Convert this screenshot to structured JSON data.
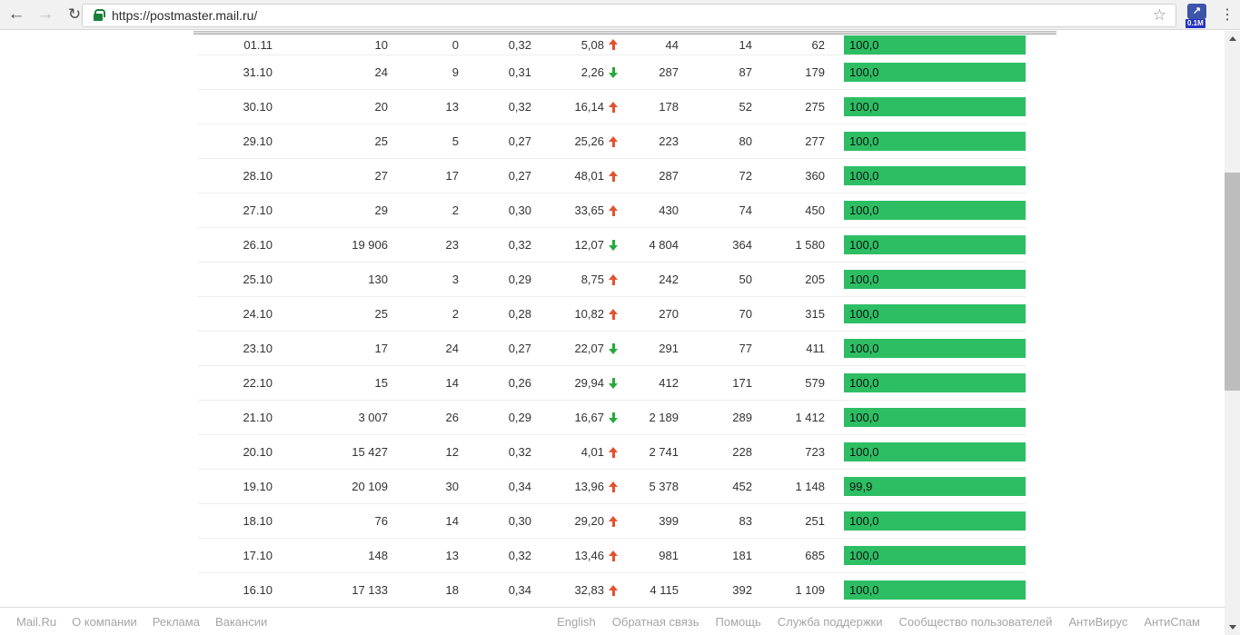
{
  "browser": {
    "url": "https://postmaster.mail.ru/",
    "extension_badge": "0.1M",
    "back_glyph": "←",
    "forward_glyph": "→",
    "refresh_glyph": "↻",
    "star_glyph": "☆",
    "menu_glyph": "⋮",
    "ext_glyph": "↗"
  },
  "colors": {
    "bar_green": "#2dbe64",
    "trend_up_red": "#e2532d",
    "trend_down_green": "#27a93c"
  },
  "table": {
    "rows": [
      {
        "date": "01.11",
        "v1": "10",
        "v2": "0",
        "v3": "0,32",
        "pct": "5,08",
        "trend": "up",
        "v4": "44",
        "v5": "14",
        "v6": "62",
        "bar_label": "100,0",
        "bar_pct": 100
      },
      {
        "date": "31.10",
        "v1": "24",
        "v2": "9",
        "v3": "0,31",
        "pct": "2,26",
        "trend": "down",
        "v4": "287",
        "v5": "87",
        "v6": "179",
        "bar_label": "100,0",
        "bar_pct": 100
      },
      {
        "date": "30.10",
        "v1": "20",
        "v2": "13",
        "v3": "0,32",
        "pct": "16,14",
        "trend": "up",
        "v4": "178",
        "v5": "52",
        "v6": "275",
        "bar_label": "100,0",
        "bar_pct": 100
      },
      {
        "date": "29.10",
        "v1": "25",
        "v2": "5",
        "v3": "0,27",
        "pct": "25,26",
        "trend": "up",
        "v4": "223",
        "v5": "80",
        "v6": "277",
        "bar_label": "100,0",
        "bar_pct": 100
      },
      {
        "date": "28.10",
        "v1": "27",
        "v2": "17",
        "v3": "0,27",
        "pct": "48,01",
        "trend": "up",
        "v4": "287",
        "v5": "72",
        "v6": "360",
        "bar_label": "100,0",
        "bar_pct": 100
      },
      {
        "date": "27.10",
        "v1": "29",
        "v2": "2",
        "v3": "0,30",
        "pct": "33,65",
        "trend": "up",
        "v4": "430",
        "v5": "74",
        "v6": "450",
        "bar_label": "100,0",
        "bar_pct": 100
      },
      {
        "date": "26.10",
        "v1": "19 906",
        "v2": "23",
        "v3": "0,32",
        "pct": "12,07",
        "trend": "down",
        "v4": "4 804",
        "v5": "364",
        "v6": "1 580",
        "bar_label": "100,0",
        "bar_pct": 100
      },
      {
        "date": "25.10",
        "v1": "130",
        "v2": "3",
        "v3": "0,29",
        "pct": "8,75",
        "trend": "up",
        "v4": "242",
        "v5": "50",
        "v6": "205",
        "bar_label": "100,0",
        "bar_pct": 100
      },
      {
        "date": "24.10",
        "v1": "25",
        "v2": "2",
        "v3": "0,28",
        "pct": "10,82",
        "trend": "up",
        "v4": "270",
        "v5": "70",
        "v6": "315",
        "bar_label": "100,0",
        "bar_pct": 100
      },
      {
        "date": "23.10",
        "v1": "17",
        "v2": "24",
        "v3": "0,27",
        "pct": "22,07",
        "trend": "down",
        "v4": "291",
        "v5": "77",
        "v6": "411",
        "bar_label": "100,0",
        "bar_pct": 100
      },
      {
        "date": "22.10",
        "v1": "15",
        "v2": "14",
        "v3": "0,26",
        "pct": "29,94",
        "trend": "down",
        "v4": "412",
        "v5": "171",
        "v6": "579",
        "bar_label": "100,0",
        "bar_pct": 100
      },
      {
        "date": "21.10",
        "v1": "3 007",
        "v2": "26",
        "v3": "0,29",
        "pct": "16,67",
        "trend": "down",
        "v4": "2 189",
        "v5": "289",
        "v6": "1 412",
        "bar_label": "100,0",
        "bar_pct": 100
      },
      {
        "date": "20.10",
        "v1": "15 427",
        "v2": "12",
        "v3": "0,32",
        "pct": "4,01",
        "trend": "up",
        "v4": "2 741",
        "v5": "228",
        "v6": "723",
        "bar_label": "100,0",
        "bar_pct": 100
      },
      {
        "date": "19.10",
        "v1": "20 109",
        "v2": "30",
        "v3": "0,34",
        "pct": "13,96",
        "trend": "up",
        "v4": "5 378",
        "v5": "452",
        "v6": "1 148",
        "bar_label": "99,9",
        "bar_pct": 99.9
      },
      {
        "date": "18.10",
        "v1": "76",
        "v2": "14",
        "v3": "0,30",
        "pct": "29,20",
        "trend": "up",
        "v4": "399",
        "v5": "83",
        "v6": "251",
        "bar_label": "100,0",
        "bar_pct": 100
      },
      {
        "date": "17.10",
        "v1": "148",
        "v2": "13",
        "v3": "0,32",
        "pct": "13,46",
        "trend": "up",
        "v4": "981",
        "v5": "181",
        "v6": "685",
        "bar_label": "100,0",
        "bar_pct": 100
      },
      {
        "date": "16.10",
        "v1": "17 133",
        "v2": "18",
        "v3": "0,34",
        "pct": "32,83",
        "trend": "up",
        "v4": "4 115",
        "v5": "392",
        "v6": "1 109",
        "bar_label": "100,0",
        "bar_pct": 100
      }
    ]
  },
  "footer": {
    "left_links": [
      "Mail.Ru",
      "О компании",
      "Реклама",
      "Вакансии"
    ],
    "right_links": [
      "English",
      "Обратная связь",
      "Помощь",
      "Служба поддержки",
      "Сообщество пользователей",
      "АнтиВирус",
      "АнтиСпам"
    ]
  }
}
